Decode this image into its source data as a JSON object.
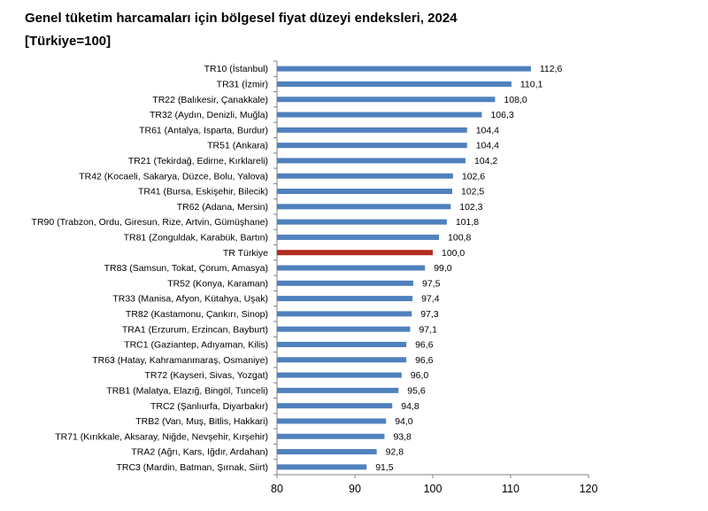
{
  "chart_data": {
    "type": "bar",
    "orientation": "horizontal",
    "title": "Genel tüketim harcamaları için bölgesel fiyat düzeyi endeksleri, 2024",
    "subtitle": "[Türkiye=100]",
    "categories": [
      "TR10 (İstanbul)",
      "TR31 (İzmir)",
      "TR22 (Balıkesir, Çanakkale)",
      "TR32 (Aydın, Denizli, Muğla)",
      "TR61 (Antalya, Isparta, Burdur)",
      "TR51 (Ankara)",
      "TR21 (Tekirdağ, Edirne, Kırklareli)",
      "TR42 (Kocaeli, Sakarya, Düzce, Bolu, Yalova)",
      "TR41 (Bursa, Eskişehir, Bilecik)",
      "TR62 (Adana, Mersin)",
      "TR90 (Trabzon, Ordu, Giresun, Rize, Artvin, Gümüşhane)",
      "TR81 (Zonguldak, Karabük, Bartın)",
      "TR Türkiye",
      "TR83 (Samsun, Tokat, Çorum, Amasya)",
      "TR52 (Konya, Karaman)",
      "TR33 (Manisa, Afyon, Kütahya, Uşak)",
      "TR82 (Kastamonu, Çankırı, Sinop)",
      "TRA1 (Erzurum, Erzincan, Bayburt)",
      "TRC1 (Gaziantep, Adıyaman, Kilis)",
      "TR63 (Hatay, Kahramanmaraş, Osmaniye)",
      "TR72 (Kayseri, Sivas, Yozgat)",
      "TRB1 (Malatya, Elazığ, Bingöl, Tunceli)",
      "TRC2 (Şanlıurfa, Diyarbakır)",
      "TRB2 (Van, Muş, Bitlis, Hakkari)",
      "TR71 (Kırıkkale, Aksaray, Niğde, Nevşehir, Kırşehir)",
      "TRA2 (Ağrı, Kars, Iğdır, Ardahan)",
      "TRC3 (Mardin, Batman, Şırnak, Siirt)"
    ],
    "values": [
      112.6,
      110.1,
      108.0,
      106.3,
      104.4,
      104.4,
      104.2,
      102.6,
      102.5,
      102.3,
      101.8,
      100.8,
      100.0,
      99.0,
      97.5,
      97.4,
      97.3,
      97.1,
      96.6,
      96.6,
      96.0,
      95.6,
      94.8,
      94.0,
      93.8,
      92.8,
      91.5
    ],
    "value_labels": [
      "112,6",
      "110,1",
      "108,0",
      "106,3",
      "104,4",
      "104,4",
      "104,2",
      "102,6",
      "102,5",
      "102,3",
      "101,8",
      "100,8",
      "100,0",
      "99,0",
      "97,5",
      "97,4",
      "97,3",
      "97,1",
      "96,6",
      "96,6",
      "96,0",
      "95,6",
      "94,8",
      "94,0",
      "93,8",
      "92,8",
      "91,5"
    ],
    "xlim": [
      80,
      120
    ],
    "xticks": [
      80,
      90,
      100,
      110,
      120
    ],
    "xtick_labels": [
      "80",
      "90",
      "100",
      "110",
      "120"
    ],
    "highlight_category": "TR Türkiye",
    "colors": {
      "bar": "#4f81bd",
      "highlight": "#b22d1e",
      "axis": "#808080"
    },
    "grid": false,
    "legend": "none"
  }
}
